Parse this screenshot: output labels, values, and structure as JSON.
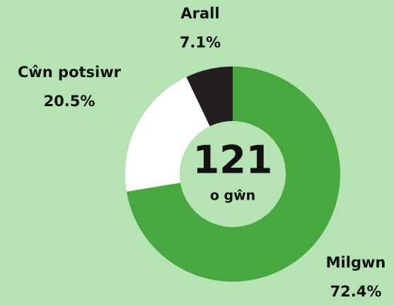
{
  "chart_data": {
    "type": "donut",
    "categories": [
      "Milgwn",
      "Cŵn potsiwr",
      "Arall"
    ],
    "values": [
      72.4,
      20.5,
      7.1
    ],
    "value_labels": [
      "72.4%",
      "20.5%",
      "7.1%"
    ],
    "colors": [
      "#46a83e",
      "#ffffff",
      "#231f20"
    ],
    "center_value": 121,
    "center_label": "o gŵn"
  }
}
